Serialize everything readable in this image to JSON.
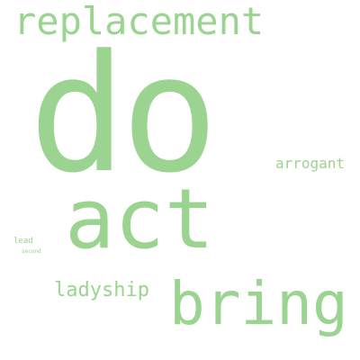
{
  "color": "#9bd490",
  "words": [
    {
      "text": "replacement"
    },
    {
      "text": "do"
    },
    {
      "text": "act"
    },
    {
      "text": "arrogant"
    },
    {
      "text": "lead"
    },
    {
      "text": "second"
    },
    {
      "text": "ladyship"
    },
    {
      "text": "bring"
    }
  ]
}
